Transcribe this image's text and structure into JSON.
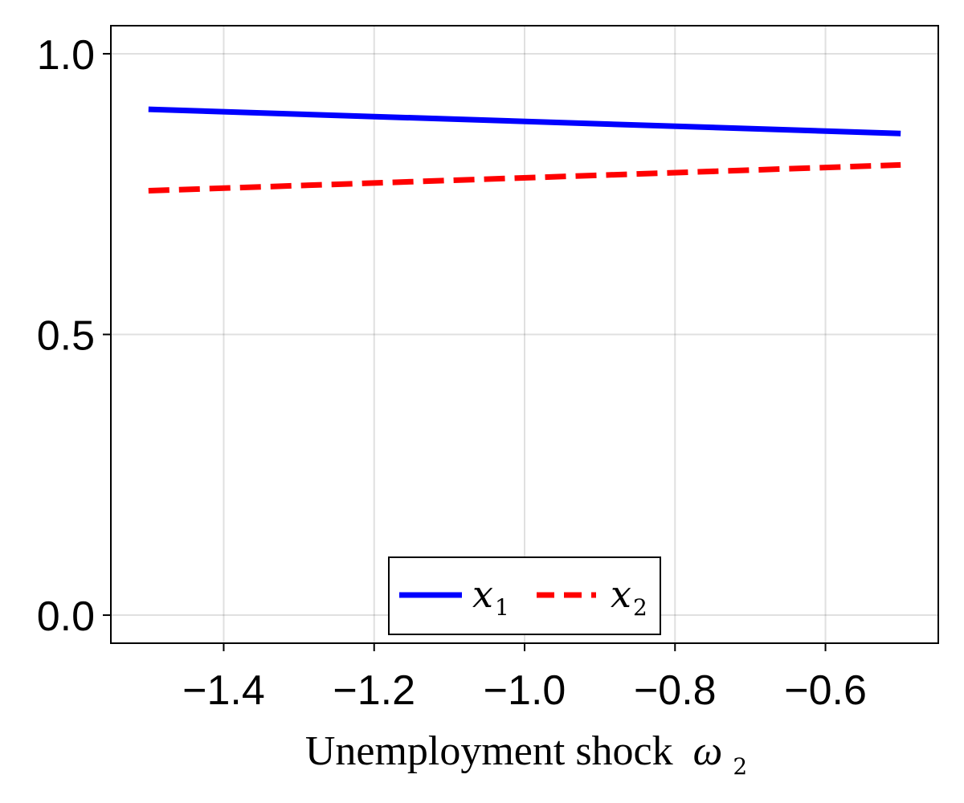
{
  "chart_data": {
    "type": "line",
    "xlabel": "Unemployment shock",
    "xlabel_symbol": "ω",
    "xlabel_subscript": "2",
    "xlim": [
      -1.55,
      -0.45
    ],
    "ylim": [
      -0.05,
      1.05
    ],
    "xticks": [
      -1.4,
      -1.2,
      -1.0,
      -0.8,
      -0.6
    ],
    "xtick_labels": [
      "−1.4",
      "−1.2",
      "−1.0",
      "−0.8",
      "−0.6"
    ],
    "yticks": [
      0.0,
      0.5,
      1.0
    ],
    "ytick_labels": [
      "0.0",
      "0.5",
      "1.0"
    ],
    "grid": true,
    "legend_position": "bottom-center",
    "series": [
      {
        "name": "x",
        "subscript": "1",
        "color": "#0000ff",
        "style": "solid",
        "x": [
          -1.5,
          -0.5
        ],
        "y": [
          0.901,
          0.858
        ]
      },
      {
        "name": "x",
        "subscript": "2",
        "color": "#ff0000",
        "style": "dashed",
        "x": [
          -1.5,
          -0.5
        ],
        "y": [
          0.756,
          0.802
        ]
      }
    ]
  }
}
